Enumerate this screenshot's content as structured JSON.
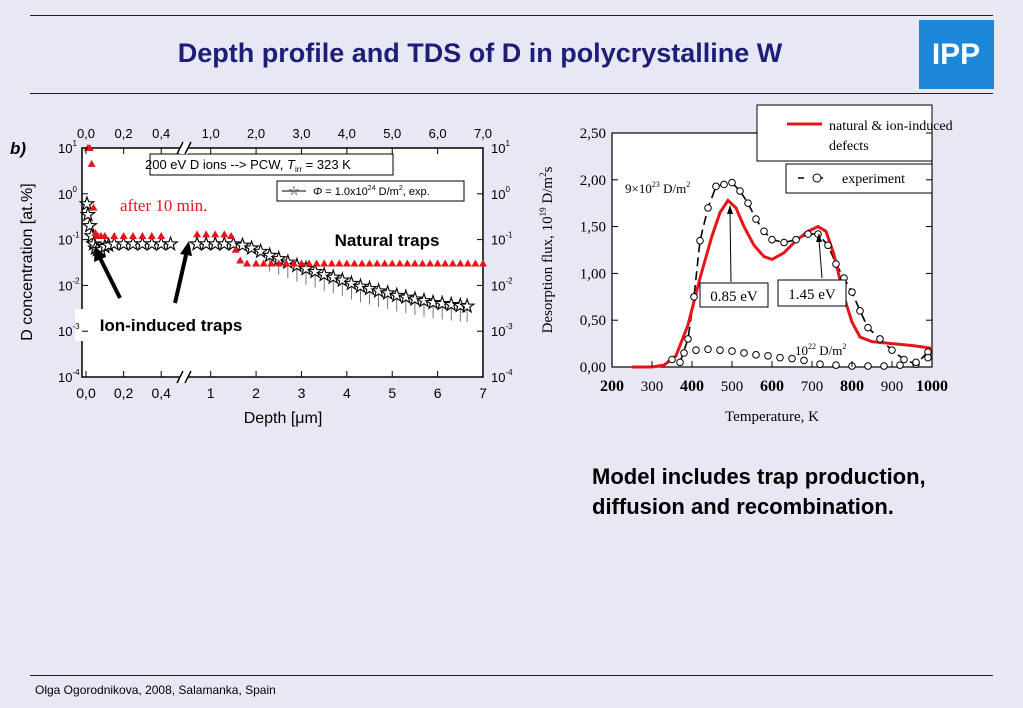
{
  "slide": {
    "title": "Depth profile and TDS of D in polycrystalline W",
    "logo_text": "IPP",
    "summary_line1": "Model includes trap production,",
    "summary_line2": "diffusion and recombination.",
    "footer": "Olga Ogorodnikova, 2008, Salamanka, Spain",
    "colors": {
      "background": "#E8E8F5",
      "title": "#1E1E78",
      "logo": "#1C86D8",
      "model": "#E8141C"
    }
  },
  "chart_data": [
    {
      "type": "scatter",
      "panel_label": "b)",
      "xlabel_prefix": "Depth [",
      "xlabel_mu": "μ",
      "xlabel_suffix": "m]",
      "ylabel": "D concentration [at.%]",
      "y_scale": "log",
      "ylim": [
        0.0001,
        10
      ],
      "x_broken_axis": true,
      "x_segment1": {
        "range": [
          0.0,
          0.5
        ],
        "ticks": [
          "0,0",
          "0,2",
          "0,4"
        ]
      },
      "x_segment2": {
        "range": [
          0.5,
          7.0
        ],
        "ticks": [
          "1",
          "2",
          "3",
          "4",
          "5",
          "6",
          "7"
        ]
      },
      "top_ticks": [
        "0,0",
        "0,2",
        "0,4",
        "1,0",
        "2,0",
        "3,0",
        "4,0",
        "5,0",
        "6,0",
        "7,0"
      ],
      "y_ticks": [
        {
          "base": "10",
          "exp": "1",
          "value": 10
        },
        {
          "base": "10",
          "exp": "0",
          "value": 1
        },
        {
          "base": "10",
          "exp": "-1",
          "value": 0.1
        },
        {
          "base": "10",
          "exp": "-2",
          "value": 0.01
        },
        {
          "base": "10",
          "exp": "-3",
          "value": 0.001
        },
        {
          "base": "10",
          "exp": "-4",
          "value": 0.0001
        }
      ],
      "conditions_text_1": "200 eV D ions --> PCW, ",
      "conditions_T": "T",
      "conditions_irr": "irr",
      "conditions_text_2": " = 323 K",
      "legend": {
        "phi": "Φ",
        "text1": " = 1.0x10",
        "exp": "24",
        "text2": " D/m",
        "exp2": "2",
        "text3": ", exp."
      },
      "annotations": {
        "after": "after 10 min.",
        "natural": "Natural traps",
        "ion": "Ion-induced traps"
      },
      "series_model": [
        [
          0.01,
          10
        ],
        [
          0.02,
          10
        ],
        [
          0.03,
          4.5
        ],
        [
          0.04,
          0.5
        ],
        [
          0.05,
          0.14
        ],
        [
          0.06,
          0.12
        ],
        [
          0.08,
          0.12
        ],
        [
          0.1,
          0.12
        ],
        [
          0.15,
          0.12
        ],
        [
          0.2,
          0.12
        ],
        [
          0.25,
          0.12
        ],
        [
          0.3,
          0.12
        ],
        [
          0.35,
          0.12
        ],
        [
          0.4,
          0.12
        ],
        [
          0.45,
          0.12
        ],
        [
          0.7,
          0.13
        ],
        [
          0.9,
          0.13
        ],
        [
          1.1,
          0.13
        ],
        [
          1.3,
          0.13
        ],
        [
          1.45,
          0.12
        ],
        [
          1.55,
          0.06
        ],
        [
          1.65,
          0.035
        ],
        [
          1.8,
          0.03
        ],
        [
          2.0,
          0.03
        ],
        [
          2.5,
          0.03
        ],
        [
          3.0,
          0.03
        ],
        [
          3.5,
          0.03
        ],
        [
          4.0,
          0.03
        ],
        [
          4.5,
          0.03
        ],
        [
          5.0,
          0.03
        ],
        [
          5.5,
          0.03
        ],
        [
          6.0,
          0.03
        ],
        [
          6.5,
          0.03
        ],
        [
          7.0,
          0.03
        ]
      ],
      "series_exp": [
        [
          0.005,
          0.6
        ],
        [
          0.01,
          0.35
        ],
        [
          0.02,
          0.2
        ],
        [
          0.03,
          0.12
        ],
        [
          0.04,
          0.08
        ],
        [
          0.05,
          0.065
        ],
        [
          0.06,
          0.06
        ],
        [
          0.08,
          0.06
        ],
        [
          0.1,
          0.07
        ],
        [
          0.12,
          0.075
        ],
        [
          0.15,
          0.08
        ],
        [
          0.2,
          0.08
        ],
        [
          0.25,
          0.08
        ],
        [
          0.3,
          0.08
        ],
        [
          0.35,
          0.08
        ],
        [
          0.4,
          0.08
        ],
        [
          0.45,
          0.08
        ],
        [
          0.7,
          0.08
        ],
        [
          0.9,
          0.08
        ],
        [
          1.1,
          0.08
        ],
        [
          1.3,
          0.08
        ],
        [
          1.5,
          0.08
        ],
        [
          1.7,
          0.075
        ],
        [
          1.9,
          0.065
        ],
        [
          2.1,
          0.055
        ],
        [
          2.3,
          0.045
        ],
        [
          2.5,
          0.038
        ],
        [
          2.7,
          0.032
        ],
        [
          2.9,
          0.027
        ],
        [
          3.1,
          0.023
        ],
        [
          3.3,
          0.02
        ],
        [
          3.5,
          0.017
        ],
        [
          3.7,
          0.015
        ],
        [
          3.9,
          0.013
        ],
        [
          4.1,
          0.011
        ],
        [
          4.3,
          0.0095
        ],
        [
          4.5,
          0.0085
        ],
        [
          4.7,
          0.0075
        ],
        [
          4.9,
          0.0068
        ],
        [
          5.1,
          0.006
        ],
        [
          5.3,
          0.0055
        ],
        [
          5.5,
          0.005
        ],
        [
          5.7,
          0.0046
        ],
        [
          5.9,
          0.0042
        ],
        [
          6.1,
          0.004
        ],
        [
          6.3,
          0.0038
        ],
        [
          6.5,
          0.0036
        ],
        [
          6.65,
          0.0035
        ]
      ]
    },
    {
      "type": "line",
      "xlabel": "Temperature, K",
      "ylabel_pre": "Desorption flux, 10",
      "ylabel_exp": "19",
      "ylabel_mid": " D/m",
      "ylabel_exp2": "2",
      "ylabel_post": "s",
      "xlim": [
        200,
        1000
      ],
      "ylim": [
        0,
        2.5
      ],
      "x_ticks": [
        "200",
        "300",
        "400",
        "500",
        "600",
        "700",
        "800",
        "900",
        "1000"
      ],
      "y_ticks": [
        "0,00",
        "0,50",
        "1,00",
        "1,50",
        "2,00",
        "2,50"
      ],
      "legend_model_line1": "natural & ion-induced",
      "legend_model_line2": "defects",
      "legend_exp": "experiment",
      "label_high_pre": "9×10",
      "label_high_exp": "23",
      "label_high_post": " D/m",
      "label_high_exp2": "2",
      "label_low_pre": "10",
      "label_low_exp": "22",
      "label_low_post": " D/m",
      "label_low_exp2": "2",
      "peak1_label": "0.85 eV",
      "peak2_label": "1.45 eV",
      "model": [
        [
          250,
          0
        ],
        [
          300,
          0
        ],
        [
          330,
          0.02
        ],
        [
          360,
          0.12
        ],
        [
          390,
          0.45
        ],
        [
          420,
          0.95
        ],
        [
          450,
          1.4
        ],
        [
          470,
          1.65
        ],
        [
          490,
          1.78
        ],
        [
          510,
          1.7
        ],
        [
          530,
          1.5
        ],
        [
          555,
          1.3
        ],
        [
          580,
          1.18
        ],
        [
          600,
          1.15
        ],
        [
          630,
          1.22
        ],
        [
          660,
          1.35
        ],
        [
          690,
          1.45
        ],
        [
          715,
          1.5
        ],
        [
          735,
          1.45
        ],
        [
          755,
          1.2
        ],
        [
          780,
          0.75
        ],
        [
          800,
          0.48
        ],
        [
          820,
          0.32
        ],
        [
          850,
          0.27
        ],
        [
          900,
          0.25
        ],
        [
          950,
          0.23
        ],
        [
          1000,
          0.2
        ]
      ],
      "exp_high": [
        [
          370,
          0.05
        ],
        [
          390,
          0.3
        ],
        [
          405,
          0.75
        ],
        [
          420,
          1.35
        ],
        [
          440,
          1.7
        ],
        [
          460,
          1.93
        ],
        [
          480,
          1.95
        ],
        [
          500,
          1.97
        ],
        [
          520,
          1.88
        ],
        [
          540,
          1.75
        ],
        [
          560,
          1.58
        ],
        [
          580,
          1.45
        ],
        [
          600,
          1.36
        ],
        [
          630,
          1.33
        ],
        [
          660,
          1.36
        ],
        [
          690,
          1.42
        ],
        [
          715,
          1.42
        ],
        [
          740,
          1.3
        ],
        [
          760,
          1.1
        ],
        [
          780,
          0.95
        ],
        [
          800,
          0.8
        ],
        [
          820,
          0.6
        ],
        [
          840,
          0.42
        ],
        [
          870,
          0.3
        ],
        [
          900,
          0.18
        ],
        [
          930,
          0.08
        ],
        [
          960,
          0.03
        ],
        [
          990,
          0.16
        ]
      ],
      "exp_low": [
        [
          350,
          0.08
        ],
        [
          380,
          0.15
        ],
        [
          410,
          0.18
        ],
        [
          440,
          0.19
        ],
        [
          470,
          0.18
        ],
        [
          500,
          0.17
        ],
        [
          530,
          0.15
        ],
        [
          560,
          0.13
        ],
        [
          590,
          0.12
        ],
        [
          620,
          0.1
        ],
        [
          650,
          0.09
        ],
        [
          680,
          0.07
        ],
        [
          720,
          0.03
        ],
        [
          760,
          0.02
        ],
        [
          800,
          0.01
        ],
        [
          840,
          0.01
        ],
        [
          880,
          0.01
        ],
        [
          920,
          0.02
        ],
        [
          960,
          0.05
        ],
        [
          990,
          0.1
        ]
      ]
    }
  ]
}
